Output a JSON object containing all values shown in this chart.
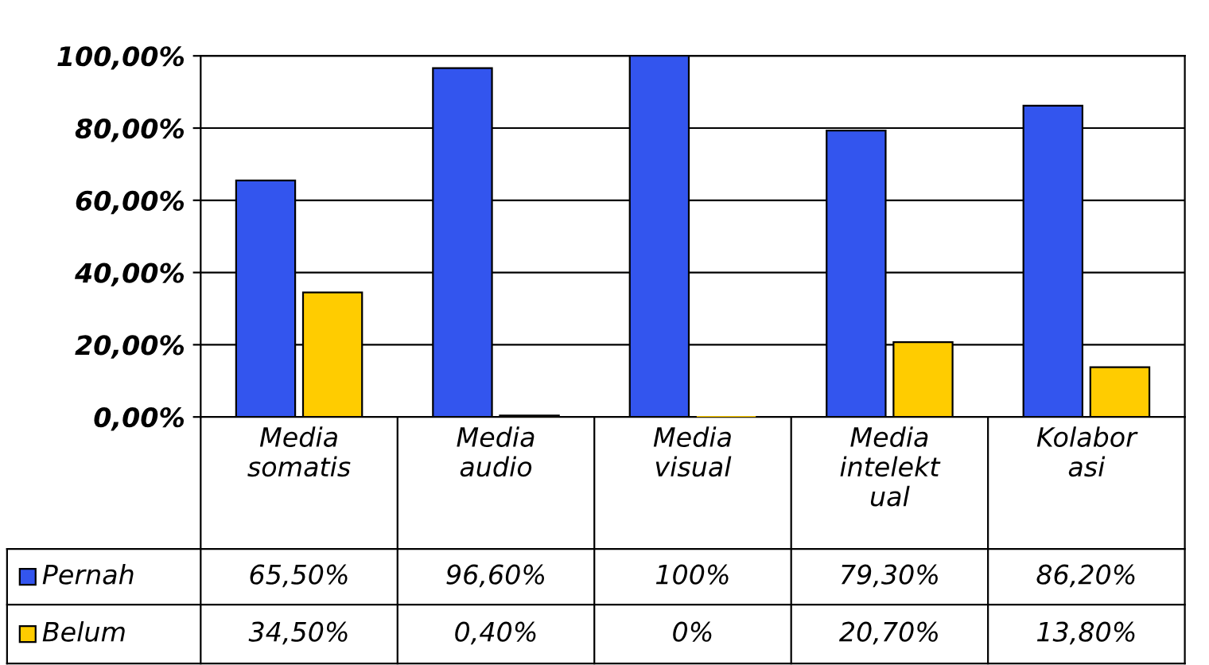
{
  "chart_data": {
    "type": "bar",
    "categories": [
      "Media\nsomatis",
      "Media\naudio",
      "Media\nvisual",
      "Media\nintelekt\nual",
      "Kolabor\nasi"
    ],
    "series": [
      {
        "name": "Pernah",
        "color": "#3355ee",
        "values": [
          65.5,
          96.6,
          100,
          79.3,
          86.2
        ],
        "value_labels": [
          "65,50%",
          "96,60%",
          "100%",
          "79,30%",
          "86,20%"
        ]
      },
      {
        "name": "Belum",
        "color": "#ffcc00",
        "values": [
          34.5,
          0.4,
          0,
          20.7,
          13.8
        ],
        "value_labels": [
          "34,50%",
          "0,40%",
          "0%",
          "20,70%",
          "13,80%"
        ]
      }
    ],
    "ylim": [
      0,
      100
    ],
    "yticks": [
      {
        "value": 0,
        "label": "0,00%"
      },
      {
        "value": 20,
        "label": "20,00%"
      },
      {
        "value": 40,
        "label": "40,00%"
      },
      {
        "value": 60,
        "label": "60,00%"
      },
      {
        "value": 80,
        "label": "80,00%"
      },
      {
        "value": 100,
        "label": "100,00%"
      }
    ],
    "grid": "y",
    "legend": "bottom"
  }
}
